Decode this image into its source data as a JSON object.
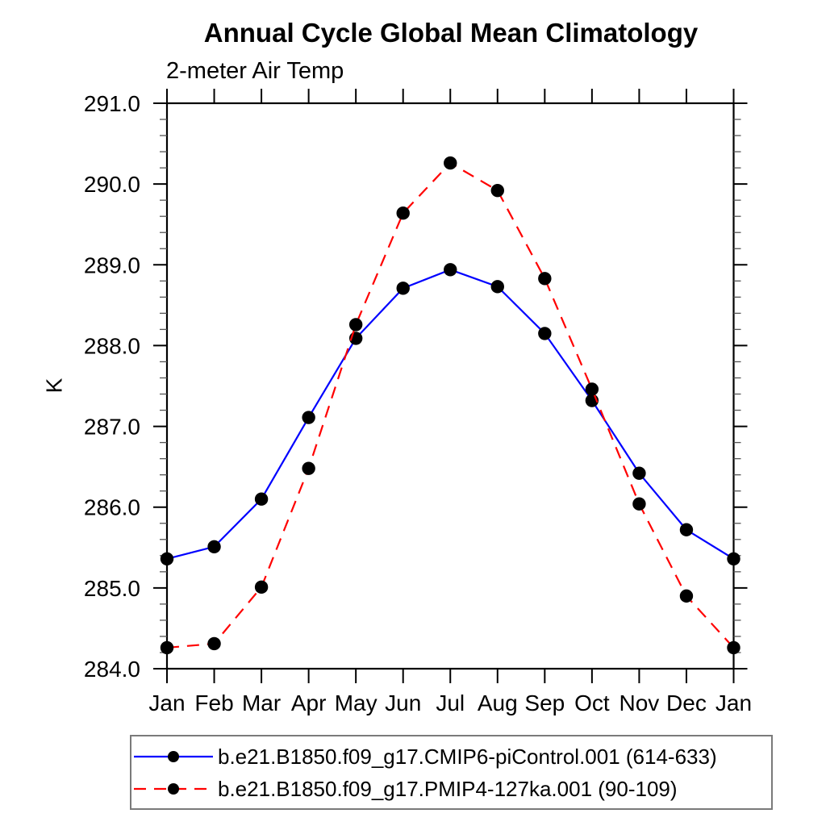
{
  "page": {
    "background": "#ffffff"
  },
  "header": {
    "title": "Annual Cycle Global Mean Climatology",
    "subtitle": "2-meter Air Temp"
  },
  "legend": {
    "position": "bottom",
    "entries": [
      {
        "label": "b.e21.B1850.f09_g17.CMIP6-piControl.001 (614-633)",
        "color": "#0000ff",
        "line_style": "solid",
        "marker": "filled-circle",
        "marker_color": "#000000"
      },
      {
        "label": "b.e21.B1850.f09_g17.PMIP4-127ka.001 (90-109)",
        "color": "#ff0000",
        "line_style": "dashed",
        "marker": "filled-circle",
        "marker_color": "#000000"
      }
    ]
  },
  "chart_data": {
    "type": "line",
    "title": "Annual Cycle Global Mean Climatology",
    "subtitle": "2-meter Air Temp",
    "xlabel": "",
    "ylabel": "K",
    "categories": [
      "Jan",
      "Feb",
      "Mar",
      "Apr",
      "May",
      "Jun",
      "Jul",
      "Aug",
      "Sep",
      "Oct",
      "Nov",
      "Dec",
      "Jan"
    ],
    "ylim": [
      284.0,
      291.0
    ],
    "ytick_step": 1.0,
    "yminor_step": 0.2,
    "yticks": [
      "284.0",
      "285.0",
      "286.0",
      "287.0",
      "288.0",
      "289.0",
      "290.0",
      "291.0"
    ],
    "grid": false,
    "legend_position": "bottom",
    "marker_color": "#000000",
    "frame_color": "#000000",
    "series": [
      {
        "name": "b.e21.B1850.f09_g17.CMIP6-piControl.001 (614-633)",
        "color": "#0000ff",
        "style": "solid",
        "values": [
          285.36,
          285.51,
          286.1,
          287.11,
          288.09,
          288.71,
          288.94,
          288.73,
          288.15,
          287.32,
          286.42,
          285.72,
          285.36
        ]
      },
      {
        "name": "b.e21.B1850.f09_g17.PMIP4-127ka.001 (90-109)",
        "color": "#ff0000",
        "style": "dashed",
        "values": [
          284.26,
          284.31,
          285.01,
          286.48,
          288.26,
          289.64,
          290.26,
          289.92,
          288.83,
          287.46,
          286.04,
          284.9,
          284.26
        ]
      }
    ]
  }
}
